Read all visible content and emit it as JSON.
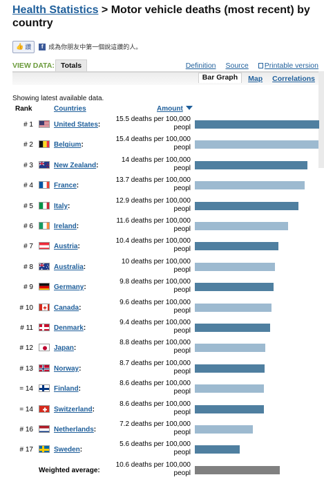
{
  "header": {
    "breadcrumb_link": "Health Statistics",
    "title_rest": " > Motor vehicle deaths (most recent) by country"
  },
  "social": {
    "like_label": "讚",
    "like_text": "成為你朋友中第一個說這讚的人。"
  },
  "view": {
    "label": "VIEW DATA:",
    "tab": "Totals",
    "links": [
      "Definition",
      "Source",
      "Printable version"
    ],
    "subtabs": [
      "Bar Graph",
      "Map",
      "Correlations"
    ]
  },
  "table": {
    "showing": "Showing latest available data.",
    "col_rank": "Rank",
    "col_countries": "Countries",
    "col_amount": "Amount"
  },
  "colors": {
    "bar_dark": "#4f7fa0",
    "bar_light": "#9dbad0",
    "bar_avg": "#808080"
  },
  "chart_data": {
    "type": "bar",
    "unit_text": "deaths per 100,000 peopl",
    "max": 15.5,
    "rows": [
      {
        "rank": "# 1",
        "country": "United States",
        "value": 15.5,
        "flag": "us"
      },
      {
        "rank": "# 2",
        "country": "Belgium",
        "value": 15.4,
        "flag": "be"
      },
      {
        "rank": "# 3",
        "country": "New Zealand",
        "value": 14,
        "flag": "nz"
      },
      {
        "rank": "# 4",
        "country": "France",
        "value": 13.7,
        "flag": "fr"
      },
      {
        "rank": "# 5",
        "country": "Italy",
        "value": 12.9,
        "flag": "it"
      },
      {
        "rank": "# 6",
        "country": "Ireland",
        "value": 11.6,
        "flag": "ie"
      },
      {
        "rank": "# 7",
        "country": "Austria",
        "value": 10.4,
        "flag": "at"
      },
      {
        "rank": "# 8",
        "country": "Australia",
        "value": 10,
        "flag": "au"
      },
      {
        "rank": "# 9",
        "country": "Germany",
        "value": 9.8,
        "flag": "de"
      },
      {
        "rank": "# 10",
        "country": "Canada",
        "value": 9.6,
        "flag": "ca"
      },
      {
        "rank": "# 11",
        "country": "Denmark",
        "value": 9.4,
        "flag": "dk"
      },
      {
        "rank": "# 12",
        "country": "Japan",
        "value": 8.8,
        "flag": "jp"
      },
      {
        "rank": "# 13",
        "country": "Norway",
        "value": 8.7,
        "flag": "no"
      },
      {
        "rank": "= 14",
        "country": "Finland",
        "value": 8.6,
        "flag": "fi"
      },
      {
        "rank": "= 14",
        "country": "Switzerland",
        "value": 8.6,
        "flag": "ch"
      },
      {
        "rank": "# 16",
        "country": "Netherlands",
        "value": 7.2,
        "flag": "nl"
      },
      {
        "rank": "# 17",
        "country": "Sweden",
        "value": 5.6,
        "flag": "se"
      }
    ],
    "average": {
      "label": "Weighted average:",
      "value": 10.6
    }
  }
}
